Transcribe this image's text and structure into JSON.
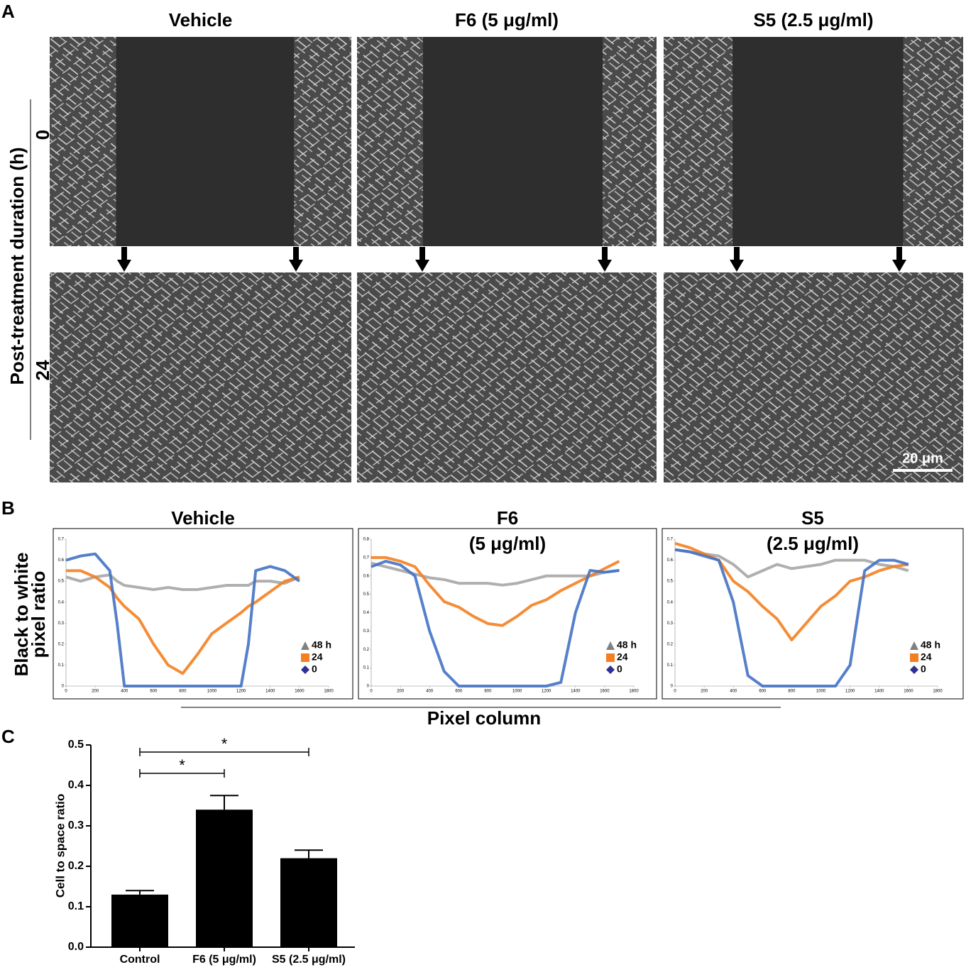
{
  "figure": {
    "panel_labels": [
      "A",
      "B",
      "C"
    ],
    "columns": [
      "Vehicle",
      "F6 (5 μg/ml)",
      "S5 (2.5 μg/ml)"
    ],
    "rows": [
      "0",
      "24"
    ],
    "row_axis_label": "Post-treatment duration (h)",
    "scale_bar": "20 μm",
    "b_ylabel_lines": [
      "Black to white",
      "pixel ratio"
    ],
    "b_xlabel": "Pixel column"
  },
  "chart_data": [
    {
      "type": "line",
      "title": "Vehicle",
      "x": [
        0,
        100,
        200,
        300,
        350,
        400,
        500,
        600,
        700,
        800,
        900,
        1000,
        1100,
        1200,
        1250,
        1300,
        1400,
        1500,
        1600
      ],
      "xlim": [
        0,
        1800
      ],
      "xticks": [
        0,
        200,
        400,
        600,
        800,
        1000,
        1200,
        1400,
        1600,
        1800
      ],
      "ylim": [
        0,
        0.7
      ],
      "yticks": [
        0,
        0.1,
        0.2,
        0.3,
        0.4,
        0.5,
        0.6,
        0.7
      ],
      "series": [
        {
          "name": "48 h",
          "color": "#a6a6a6",
          "marker": "triangle",
          "values": [
            0.52,
            0.5,
            0.52,
            0.53,
            0.5,
            0.48,
            0.47,
            0.46,
            0.47,
            0.46,
            0.46,
            0.47,
            0.48,
            0.48,
            0.48,
            0.5,
            0.5,
            0.49,
            0.52
          ]
        },
        {
          "name": "24",
          "color": "#f47f20",
          "marker": "square",
          "values": [
            0.55,
            0.55,
            0.52,
            0.47,
            0.42,
            0.38,
            0.32,
            0.2,
            0.1,
            0.06,
            0.15,
            0.25,
            0.3,
            0.35,
            0.38,
            0.4,
            0.45,
            0.5,
            0.52
          ]
        },
        {
          "name": "0",
          "color": "#4472c4",
          "marker": "diamond",
          "values": [
            0.6,
            0.62,
            0.63,
            0.55,
            0.3,
            0,
            0,
            0,
            0,
            0,
            0,
            0,
            0,
            0,
            0.2,
            0.55,
            0.57,
            0.55,
            0.5
          ]
        }
      ]
    },
    {
      "type": "line",
      "title": "F6",
      "subtitle": "(5 μg/ml)",
      "x": [
        0,
        100,
        200,
        300,
        400,
        500,
        600,
        700,
        800,
        900,
        1000,
        1100,
        1200,
        1300,
        1400,
        1500,
        1600,
        1700
      ],
      "xlim": [
        0,
        1800
      ],
      "xticks": [
        0,
        200,
        400,
        600,
        800,
        1000,
        1200,
        1400,
        1600,
        1800
      ],
      "ylim": [
        0,
        0.8
      ],
      "yticks": [
        0,
        0.1,
        0.2,
        0.3,
        0.4,
        0.5,
        0.6,
        0.7,
        0.8
      ],
      "series": [
        {
          "name": "48 h",
          "color": "#a6a6a6",
          "marker": "triangle",
          "values": [
            0.67,
            0.65,
            0.63,
            0.61,
            0.59,
            0.58,
            0.56,
            0.56,
            0.56,
            0.55,
            0.56,
            0.58,
            0.6,
            0.6,
            0.6,
            0.6,
            0.62,
            0.63
          ]
        },
        {
          "name": "24",
          "color": "#f47f20",
          "marker": "square",
          "values": [
            0.7,
            0.7,
            0.68,
            0.65,
            0.55,
            0.46,
            0.43,
            0.38,
            0.34,
            0.33,
            0.38,
            0.44,
            0.47,
            0.52,
            0.56,
            0.6,
            0.64,
            0.68
          ]
        },
        {
          "name": "0",
          "color": "#4472c4",
          "marker": "diamond",
          "values": [
            0.65,
            0.68,
            0.66,
            0.6,
            0.3,
            0.08,
            0,
            0,
            0,
            0,
            0,
            0,
            0,
            0.02,
            0.4,
            0.63,
            0.62,
            0.63
          ]
        }
      ]
    },
    {
      "type": "line",
      "title": "S5",
      "subtitle": "(2.5 μg/ml)",
      "x": [
        0,
        100,
        200,
        300,
        400,
        500,
        600,
        700,
        800,
        900,
        1000,
        1100,
        1200,
        1300,
        1400,
        1500,
        1600
      ],
      "xlim": [
        0,
        1800
      ],
      "xticks": [
        0,
        200,
        400,
        600,
        800,
        1000,
        1200,
        1400,
        1600,
        1800
      ],
      "ylim": [
        0,
        0.7
      ],
      "yticks": [
        0,
        0.1,
        0.2,
        0.3,
        0.4,
        0.5,
        0.6,
        0.7
      ],
      "series": [
        {
          "name": "48 h",
          "color": "#a6a6a6",
          "marker": "triangle",
          "values": [
            0.65,
            0.64,
            0.63,
            0.62,
            0.58,
            0.52,
            0.55,
            0.58,
            0.56,
            0.57,
            0.58,
            0.6,
            0.6,
            0.6,
            0.58,
            0.57,
            0.55
          ]
        },
        {
          "name": "24",
          "color": "#f47f20",
          "marker": "square",
          "values": [
            0.68,
            0.66,
            0.63,
            0.6,
            0.5,
            0.45,
            0.38,
            0.32,
            0.22,
            0.3,
            0.38,
            0.43,
            0.5,
            0.52,
            0.55,
            0.57,
            0.58
          ]
        },
        {
          "name": "0",
          "color": "#4472c4",
          "marker": "diamond",
          "values": [
            0.65,
            0.64,
            0.62,
            0.6,
            0.4,
            0.05,
            0,
            0,
            0,
            0,
            0,
            0,
            0.1,
            0.55,
            0.6,
            0.6,
            0.58
          ]
        }
      ]
    },
    {
      "type": "bar",
      "ylabel": "Cell to space ratio",
      "categories": [
        "Control",
        "F6 (5 μg/ml)",
        "S5 (2.5 μg/ml)"
      ],
      "values": [
        0.13,
        0.34,
        0.22
      ],
      "errors": [
        0.01,
        0.035,
        0.02
      ],
      "color": "#000000",
      "ylim": [
        0,
        0.5
      ],
      "yticks": [
        {
          "value": 0,
          "label": "0.0"
        },
        0.1,
        0.2,
        0.3,
        0.4,
        0.5
      ],
      "comparisons": [
        {
          "groups": [
            "Control",
            "F6 (5 μg/ml)"
          ],
          "label": "*"
        },
        {
          "groups": [
            "Control",
            "S5 (2.5 μg/ml)"
          ],
          "label": "*"
        }
      ]
    }
  ]
}
